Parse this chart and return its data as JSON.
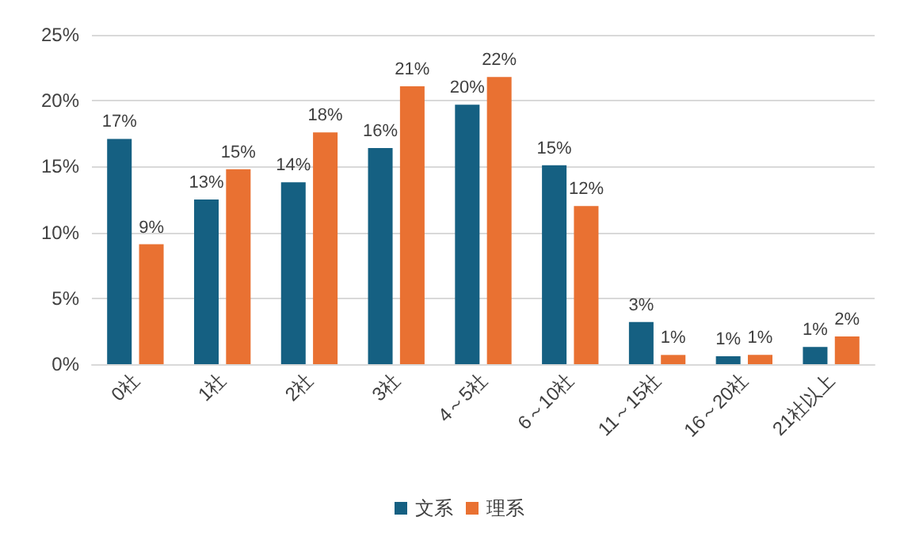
{
  "chart_data": {
    "type": "bar",
    "categories": [
      "0社",
      "1社",
      "2社",
      "3社",
      "4～5社",
      "6～10社",
      "11～15社",
      "16～20社",
      "21社以上"
    ],
    "series": [
      {
        "name": "文系",
        "color": "#156082",
        "values": [
          17.1,
          12.5,
          13.8,
          16.4,
          19.7,
          15.1,
          3.2,
          0.6,
          1.3
        ],
        "value_labels": [
          "17%",
          "13%",
          "14%",
          "16%",
          "20%",
          "15%",
          "3%",
          "1%",
          "1%"
        ]
      },
      {
        "name": "理系",
        "color": "#e97132",
        "values": [
          9.1,
          14.8,
          17.6,
          21.1,
          21.8,
          12.0,
          0.7,
          0.7,
          2.1
        ],
        "value_labels": [
          "9%",
          "15%",
          "18%",
          "21%",
          "22%",
          "12%",
          "1%",
          "1%",
          "2%"
        ]
      }
    ],
    "ylim": [
      0,
      25
    ],
    "yticks": [
      {
        "value": 0,
        "label": "0%"
      },
      {
        "value": 5,
        "label": "5%"
      },
      {
        "value": 10,
        "label": "10%"
      },
      {
        "value": 15,
        "label": "15%"
      },
      {
        "value": 20,
        "label": "20%"
      },
      {
        "value": 25,
        "label": "25%"
      }
    ],
    "grid": "y",
    "legend": "bottom"
  }
}
